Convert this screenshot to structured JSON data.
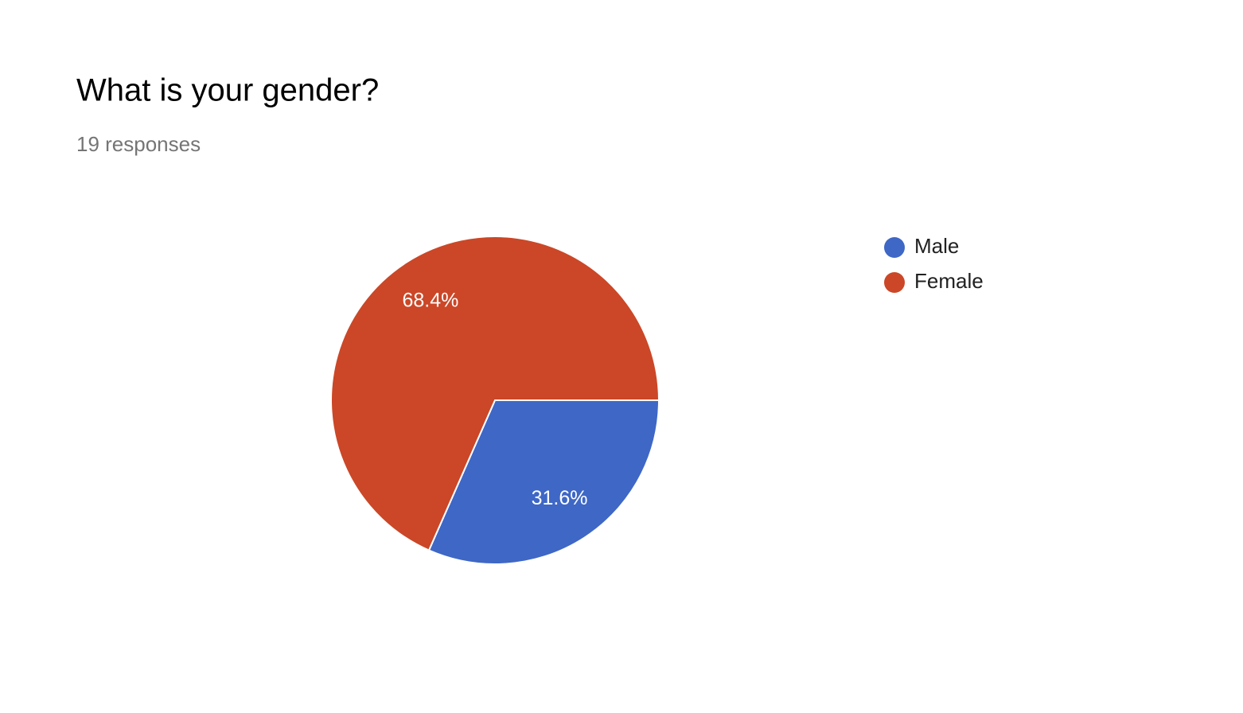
{
  "chart_data": {
    "type": "pie",
    "title": "What is your gender?",
    "subtitle": "19 responses",
    "categories": [
      "Male",
      "Female"
    ],
    "values": [
      31.6,
      68.4
    ],
    "value_labels": [
      "31.6%",
      "68.4%"
    ],
    "colors": [
      "#3e67c6",
      "#cb4727"
    ],
    "legend": "right"
  }
}
